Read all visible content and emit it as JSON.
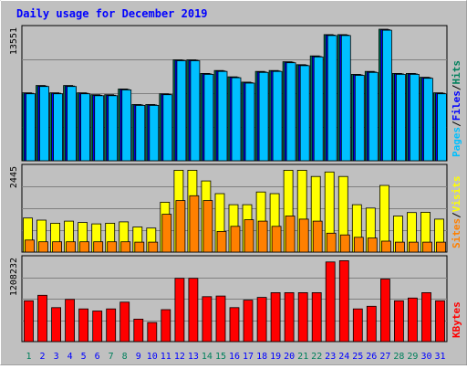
{
  "chart_data": {
    "type": "bar",
    "title": "Daily usage for December 2019",
    "categories": [
      "1",
      "2",
      "3",
      "4",
      "5",
      "6",
      "7",
      "8",
      "9",
      "10",
      "11",
      "12",
      "13",
      "14",
      "15",
      "16",
      "17",
      "18",
      "19",
      "20",
      "21",
      "22",
      "23",
      "24",
      "25",
      "26",
      "27",
      "28",
      "29",
      "30",
      "31"
    ],
    "weekend_days": [
      1,
      7,
      8,
      14,
      15,
      21,
      22,
      28,
      29
    ],
    "panels": [
      {
        "id": "hits_files_pages",
        "max_label": "13551",
        "ymax": 13551,
        "right_labels": [
          "Pages",
          "Files",
          "Hits"
        ],
        "series": [
          {
            "name": "Hits",
            "color": "#00805c",
            "values": [
              7000,
              7750,
              7000,
              7750,
              7000,
              6800,
              6800,
              7400,
              5800,
              5800,
              6900,
              10400,
              10400,
              9000,
              9300,
              8650,
              8100,
              9200,
              9300,
              10200,
              9900,
              10800,
              13000,
              13000,
              8900,
              9200,
              13550,
              9000,
              9000,
              8600,
              7000
            ]
          },
          {
            "name": "Files",
            "color": "#0000ff",
            "values": [
              6950,
              7700,
              6950,
              7700,
              6950,
              6750,
              6750,
              7350,
              5750,
              5750,
              6850,
              10350,
              10350,
              8950,
              9250,
              8600,
              8050,
              9150,
              9250,
              10150,
              9850,
              10750,
              12950,
              12950,
              8850,
              9150,
              13500,
              8950,
              8950,
              8550,
              6950
            ]
          },
          {
            "name": "Pages",
            "color": "#00c0ff",
            "values": [
              6900,
              7650,
              6900,
              7650,
              6900,
              6700,
              6700,
              7300,
              5700,
              5700,
              6800,
              10300,
              10300,
              8900,
              9200,
              8550,
              8000,
              9100,
              9200,
              10100,
              9800,
              10700,
              12900,
              12900,
              8800,
              9100,
              13450,
              8900,
              8900,
              8500,
              6900
            ]
          }
        ]
      },
      {
        "id": "visits_sites",
        "max_label": "2445",
        "ymax": 2445,
        "right_labels": [
          "Sites",
          "Visits"
        ],
        "series": [
          {
            "name": "Visits",
            "color": "#ffff00",
            "values": [
              990,
              930,
              840,
              900,
              860,
              820,
              840,
              880,
              730,
              700,
              1450,
              2380,
              2380,
              2070,
              1700,
              1380,
              1380,
              1750,
              1700,
              2380,
              2380,
              2200,
              2330,
              2200,
              1380,
              1280,
              1940,
              1050,
              1150,
              1160,
              960
            ]
          },
          {
            "name": "Sites",
            "color": "#ff8000",
            "values": [
              350,
              300,
              300,
              300,
              300,
              300,
              300,
              300,
              290,
              290,
              1100,
              1500,
              1640,
              1500,
              600,
              750,
              940,
              900,
              750,
              1050,
              960,
              900,
              550,
              500,
              430,
              410,
              320,
              290,
              290,
              290,
              290
            ]
          }
        ]
      },
      {
        "id": "kbytes",
        "max_label": "1208232",
        "ymax": 1208232,
        "right_labels": [
          "KBytes"
        ],
        "series": [
          {
            "name": "KBytes",
            "color": "#ff0000",
            "values": [
              600000,
              680000,
              500000,
              620000,
              480000,
              450000,
              480000,
              580000,
              330000,
              280000,
              470000,
              930000,
              930000,
              660000,
              670000,
              500000,
              610000,
              650000,
              720000,
              720000,
              720000,
              720000,
              1170000,
              1190000,
              480000,
              520000,
              920000,
              600000,
              640000,
              720000,
              600000
            ]
          }
        ]
      }
    ]
  },
  "colors": {
    "frame_bg": "#c0c0c0",
    "title": "#0000ff",
    "axis_label": "#000000",
    "weekday_label": "#0000ff",
    "weekend_label": "#00805c"
  }
}
